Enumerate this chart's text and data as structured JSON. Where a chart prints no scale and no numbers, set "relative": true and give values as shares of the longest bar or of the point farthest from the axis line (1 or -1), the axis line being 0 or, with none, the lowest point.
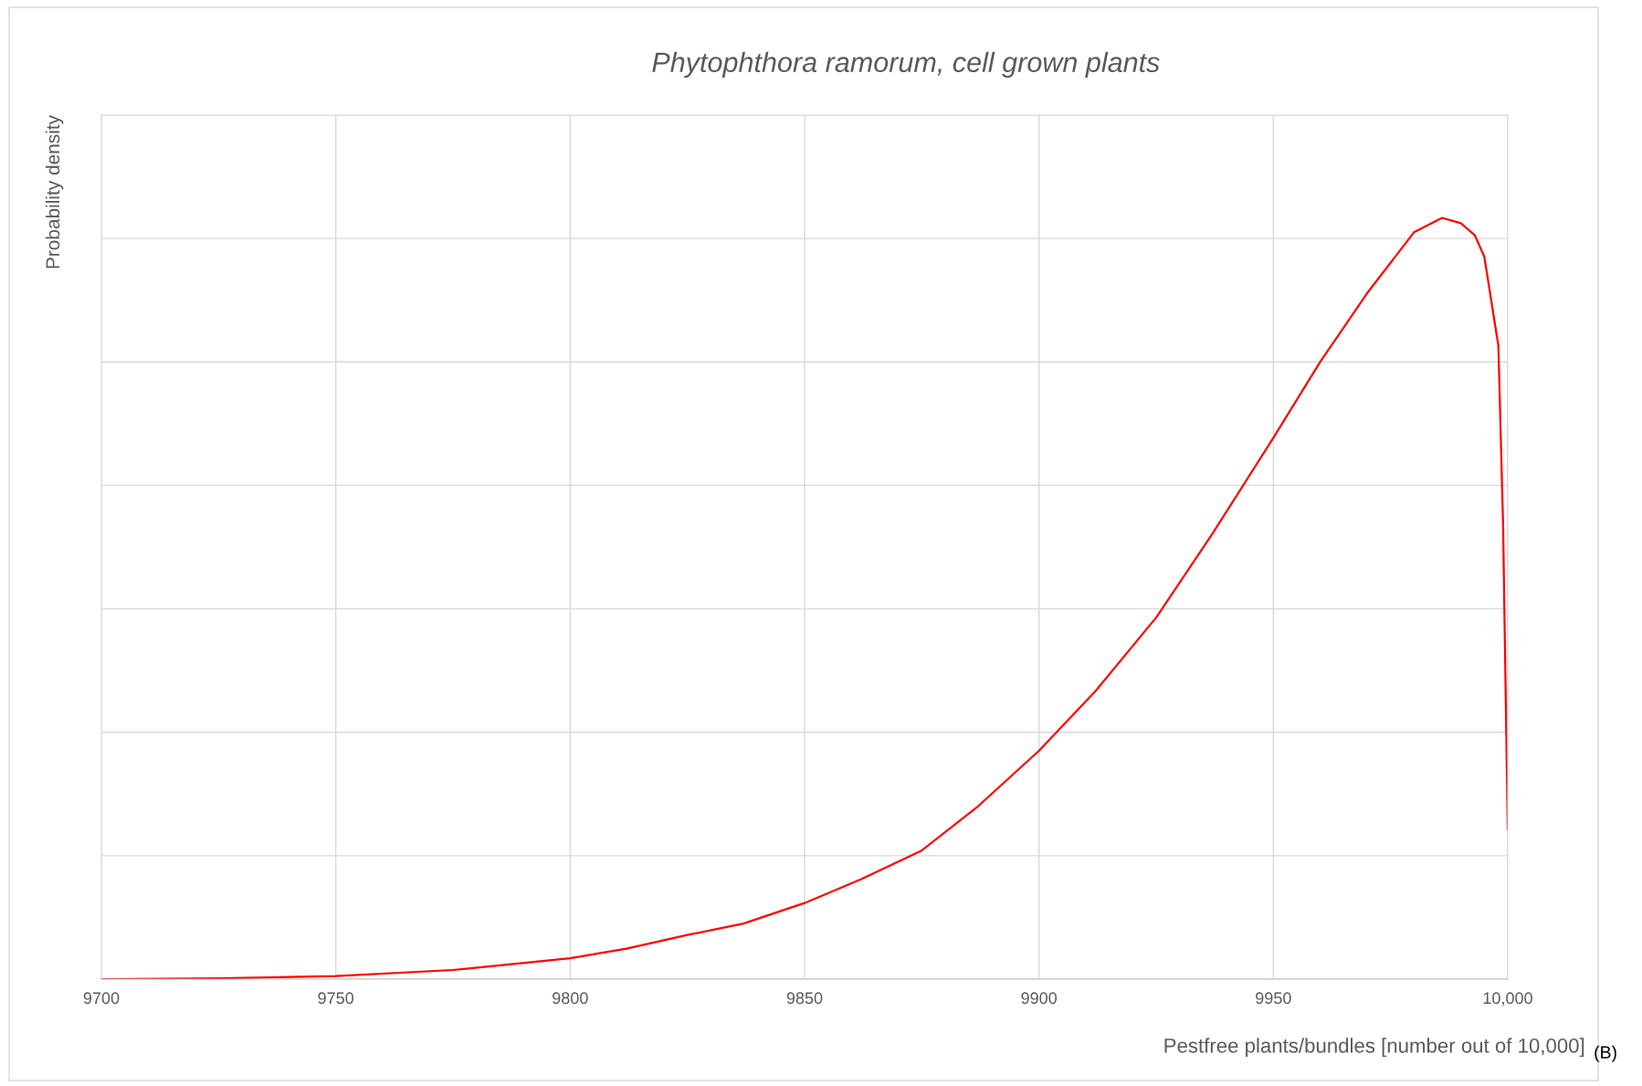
{
  "chart_data": {
    "type": "line",
    "title": "Phytophthora ramorum, cell grown plants",
    "xlabel": "Pestfree plants/bundles [number out of 10,000]",
    "ylabel": "Probability density",
    "annotations": [
      "(B)"
    ],
    "relative": true,
    "grid": true,
    "marker": "none",
    "line_style": "solid",
    "xlim": [
      9700,
      10000
    ],
    "xticks": [
      9700,
      9750,
      9800,
      9850,
      9900,
      9950,
      {
        "value": 10000,
        "label": "10,000"
      }
    ],
    "series": [
      {
        "color": "#ff0000",
        "x": [
          9700,
          9725,
          9750,
          9775,
          9800,
          9812,
          9825,
          9837,
          9850,
          9862,
          9875,
          9887,
          9900,
          9912,
          9925,
          9937,
          9950,
          9960,
          9970,
          9980,
          9986,
          9990,
          9993,
          9995,
          9998,
          9999,
          10000
        ],
        "values": [
          0,
          0.001,
          0.004,
          0.012,
          0.0275,
          0.04,
          0.058,
          0.073,
          0.1,
          0.131,
          0.169,
          0.227,
          0.3,
          0.378,
          0.475,
          0.585,
          0.711,
          0.811,
          0.901,
          0.981,
          1.0,
          0.993,
          0.977,
          0.949,
          0.832,
          0.598,
          0.197
        ]
      }
    ]
  }
}
